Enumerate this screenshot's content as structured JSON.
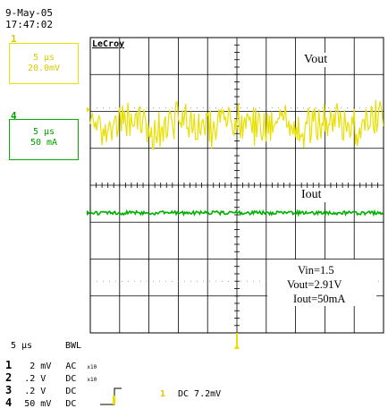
{
  "screen": {
    "date": "9-May-05",
    "time": "17:47:02",
    "brand": "LeCroy",
    "channels": [
      {
        "num": "1",
        "timebase": "5 µs",
        "scale": "20.0mV",
        "color": "#e8e000"
      },
      {
        "num": "4",
        "timebase": "5 µs",
        "scale": "50 mA",
        "color": "#00b000"
      }
    ],
    "labels": {
      "vout": "Vout",
      "iout": "Iout",
      "conditions": [
        "Vin=1.5",
        "Vout=2.91V",
        "Iout=50mA"
      ]
    },
    "footer": {
      "timebase": "5 µs",
      "bwl": "BWL",
      "rows": [
        {
          "num": "1",
          "scale": "2",
          "unit": "mV",
          "coupling": "AC",
          "probe": "x10"
        },
        {
          "num": "2",
          "scale": ".2",
          "unit": "V",
          "coupling": "DC",
          "probe": "x10"
        },
        {
          "num": "3",
          "scale": ".2",
          "unit": "V",
          "coupling": "DC",
          "probe": ""
        },
        {
          "num": "4",
          "scale": "50",
          "unit": "mV",
          "coupling": "DC",
          "probe": ""
        }
      ],
      "trigger_channel": "1",
      "trigger_text": "DC 7.2mV"
    },
    "colors": {
      "ch1": "#e8e000",
      "ch4": "#00b000",
      "grid": "#000000",
      "dots": "#888888"
    }
  },
  "chart_data": {
    "type": "line",
    "title": "",
    "xlabel": "",
    "ylabel": "",
    "divisions": {
      "x": 10,
      "y": 8
    },
    "x_time_per_div_us": 5,
    "series": [
      {
        "name": "Vout",
        "channel": "1",
        "volts_per_div_mV": 20.0,
        "mean_div": 0,
        "ripple_pk_pk_div": 1.0
      },
      {
        "name": "Iout",
        "channel": "4",
        "amps_per_div_mA": 50,
        "mean_div": 0,
        "ripple_pk_pk_div": 0.05
      }
    ]
  }
}
